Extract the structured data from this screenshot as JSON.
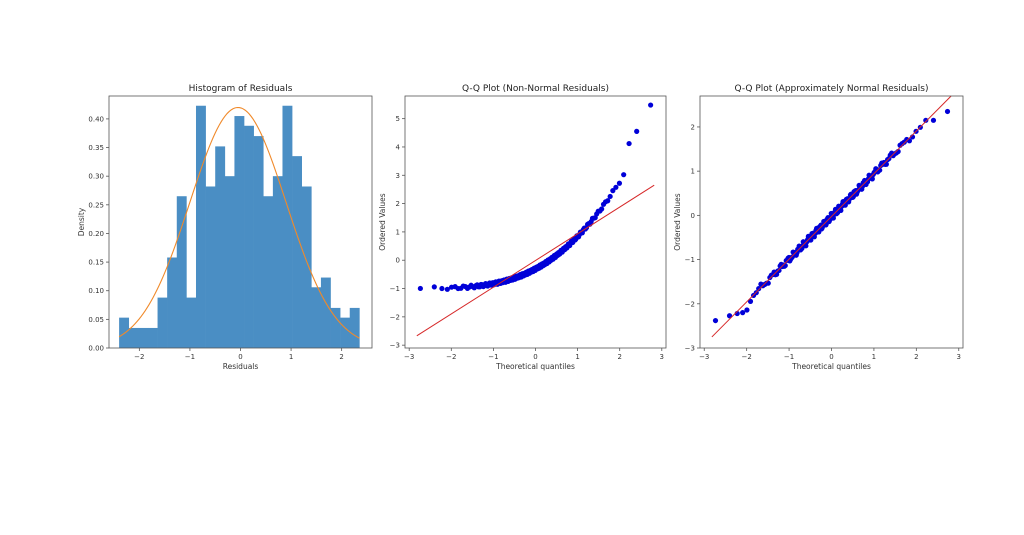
{
  "figure": {
    "background": "#ffffff",
    "colors": {
      "bar": "#4a8ec4",
      "kde": "#f08a2b",
      "points": "#0000d8",
      "refline": "#d62728",
      "axis": "#555555"
    }
  },
  "chart_data": [
    {
      "type": "bar",
      "title": "Histogram of Residuals",
      "xlabel": "Residuals",
      "ylabel": "Density",
      "xlim": [
        -2.6,
        2.6
      ],
      "ylim": [
        0,
        0.44
      ],
      "xticks": [
        -2,
        -1,
        0,
        1,
        2
      ],
      "xtick_labels": [
        "−2",
        "−1",
        "0",
        "1",
        "2"
      ],
      "yticks": [
        0.0,
        0.05,
        0.1,
        0.15,
        0.2,
        0.25,
        0.3,
        0.35,
        0.4
      ],
      "ytick_labels": [
        "0.00",
        "0.05",
        "0.10",
        "0.15",
        "0.20",
        "0.25",
        "0.30",
        "0.35",
        "0.40"
      ],
      "bin_start": -2.4,
      "bin_width": 0.19,
      "values": [
        0.053,
        0.035,
        0.035,
        0.035,
        0.088,
        0.158,
        0.265,
        0.088,
        0.423,
        0.282,
        0.352,
        0.3,
        0.405,
        0.388,
        0.37,
        0.265,
        0.3,
        0.423,
        0.335,
        0.282,
        0.106,
        0.123,
        0.07,
        0.053,
        0.07
      ],
      "overlay": {
        "type": "line",
        "name": "normal pdf fit",
        "mean": -0.05,
        "std": 0.95
      },
      "grid": false,
      "legend": null
    },
    {
      "type": "scatter",
      "title": "Q-Q Plot (Non-Normal Residuals)",
      "xlabel": "Theoretical quantiles",
      "ylabel": "Ordered Values",
      "xlim": [
        -3.1,
        3.1
      ],
      "ylim": [
        -3.1,
        5.8
      ],
      "xticks": [
        -3,
        -2,
        -1,
        0,
        1,
        2,
        3
      ],
      "xtick_labels": [
        "−3",
        "−2",
        "−1",
        "0",
        "1",
        "2",
        "3"
      ],
      "yticks": [
        -3,
        -2,
        -1,
        0,
        1,
        2,
        3,
        4,
        5
      ],
      "ytick_labels": [
        "−3",
        "−2",
        "−1",
        "0",
        "1",
        "2",
        "3",
        "4",
        "5"
      ],
      "n_points": 200,
      "shape": "right-skewed (exponential-like): flat near -1 on left, curving upward on right",
      "fit_line": {
        "x": [
          -2.82,
          2.82
        ],
        "y": [
          -2.67,
          2.65
        ]
      },
      "notable_points": [
        [
          -2.82,
          -1.0
        ],
        [
          -2.52,
          -1.0
        ],
        [
          2.38,
          4.12
        ],
        [
          2.53,
          4.55
        ],
        [
          2.82,
          5.48
        ]
      ],
      "grid": false,
      "legend": null
    },
    {
      "type": "scatter",
      "title": "Q-Q Plot (Approximately Normal Residuals)",
      "xlabel": "Theoretical quantiles",
      "ylabel": "Ordered Values",
      "xlim": [
        -3.1,
        3.1
      ],
      "ylim": [
        -3.0,
        2.7
      ],
      "xticks": [
        -3,
        -2,
        -1,
        0,
        1,
        2,
        3
      ],
      "xtick_labels": [
        "−3",
        "−2",
        "−1",
        "0",
        "1",
        "2",
        "3"
      ],
      "yticks": [
        -3,
        -2,
        -1,
        0,
        1,
        2
      ],
      "ytick_labels": [
        "−3",
        "−2",
        "−1",
        "0",
        "1",
        "2"
      ],
      "n_points": 200,
      "shape": "points closely follow the reference line",
      "fit_line": {
        "x": [
          -2.82,
          2.82
        ],
        "y": [
          -2.75,
          2.7
        ]
      },
      "notable_points": [
        [
          -2.82,
          -2.38
        ],
        [
          -2.56,
          -2.27
        ],
        [
          -2.38,
          -2.22
        ],
        [
          -2.25,
          -2.2
        ],
        [
          -2.15,
          -2.14
        ],
        [
          2.38,
          2.15
        ],
        [
          2.55,
          2.15
        ],
        [
          2.82,
          2.35
        ]
      ],
      "grid": false,
      "legend": null
    }
  ]
}
